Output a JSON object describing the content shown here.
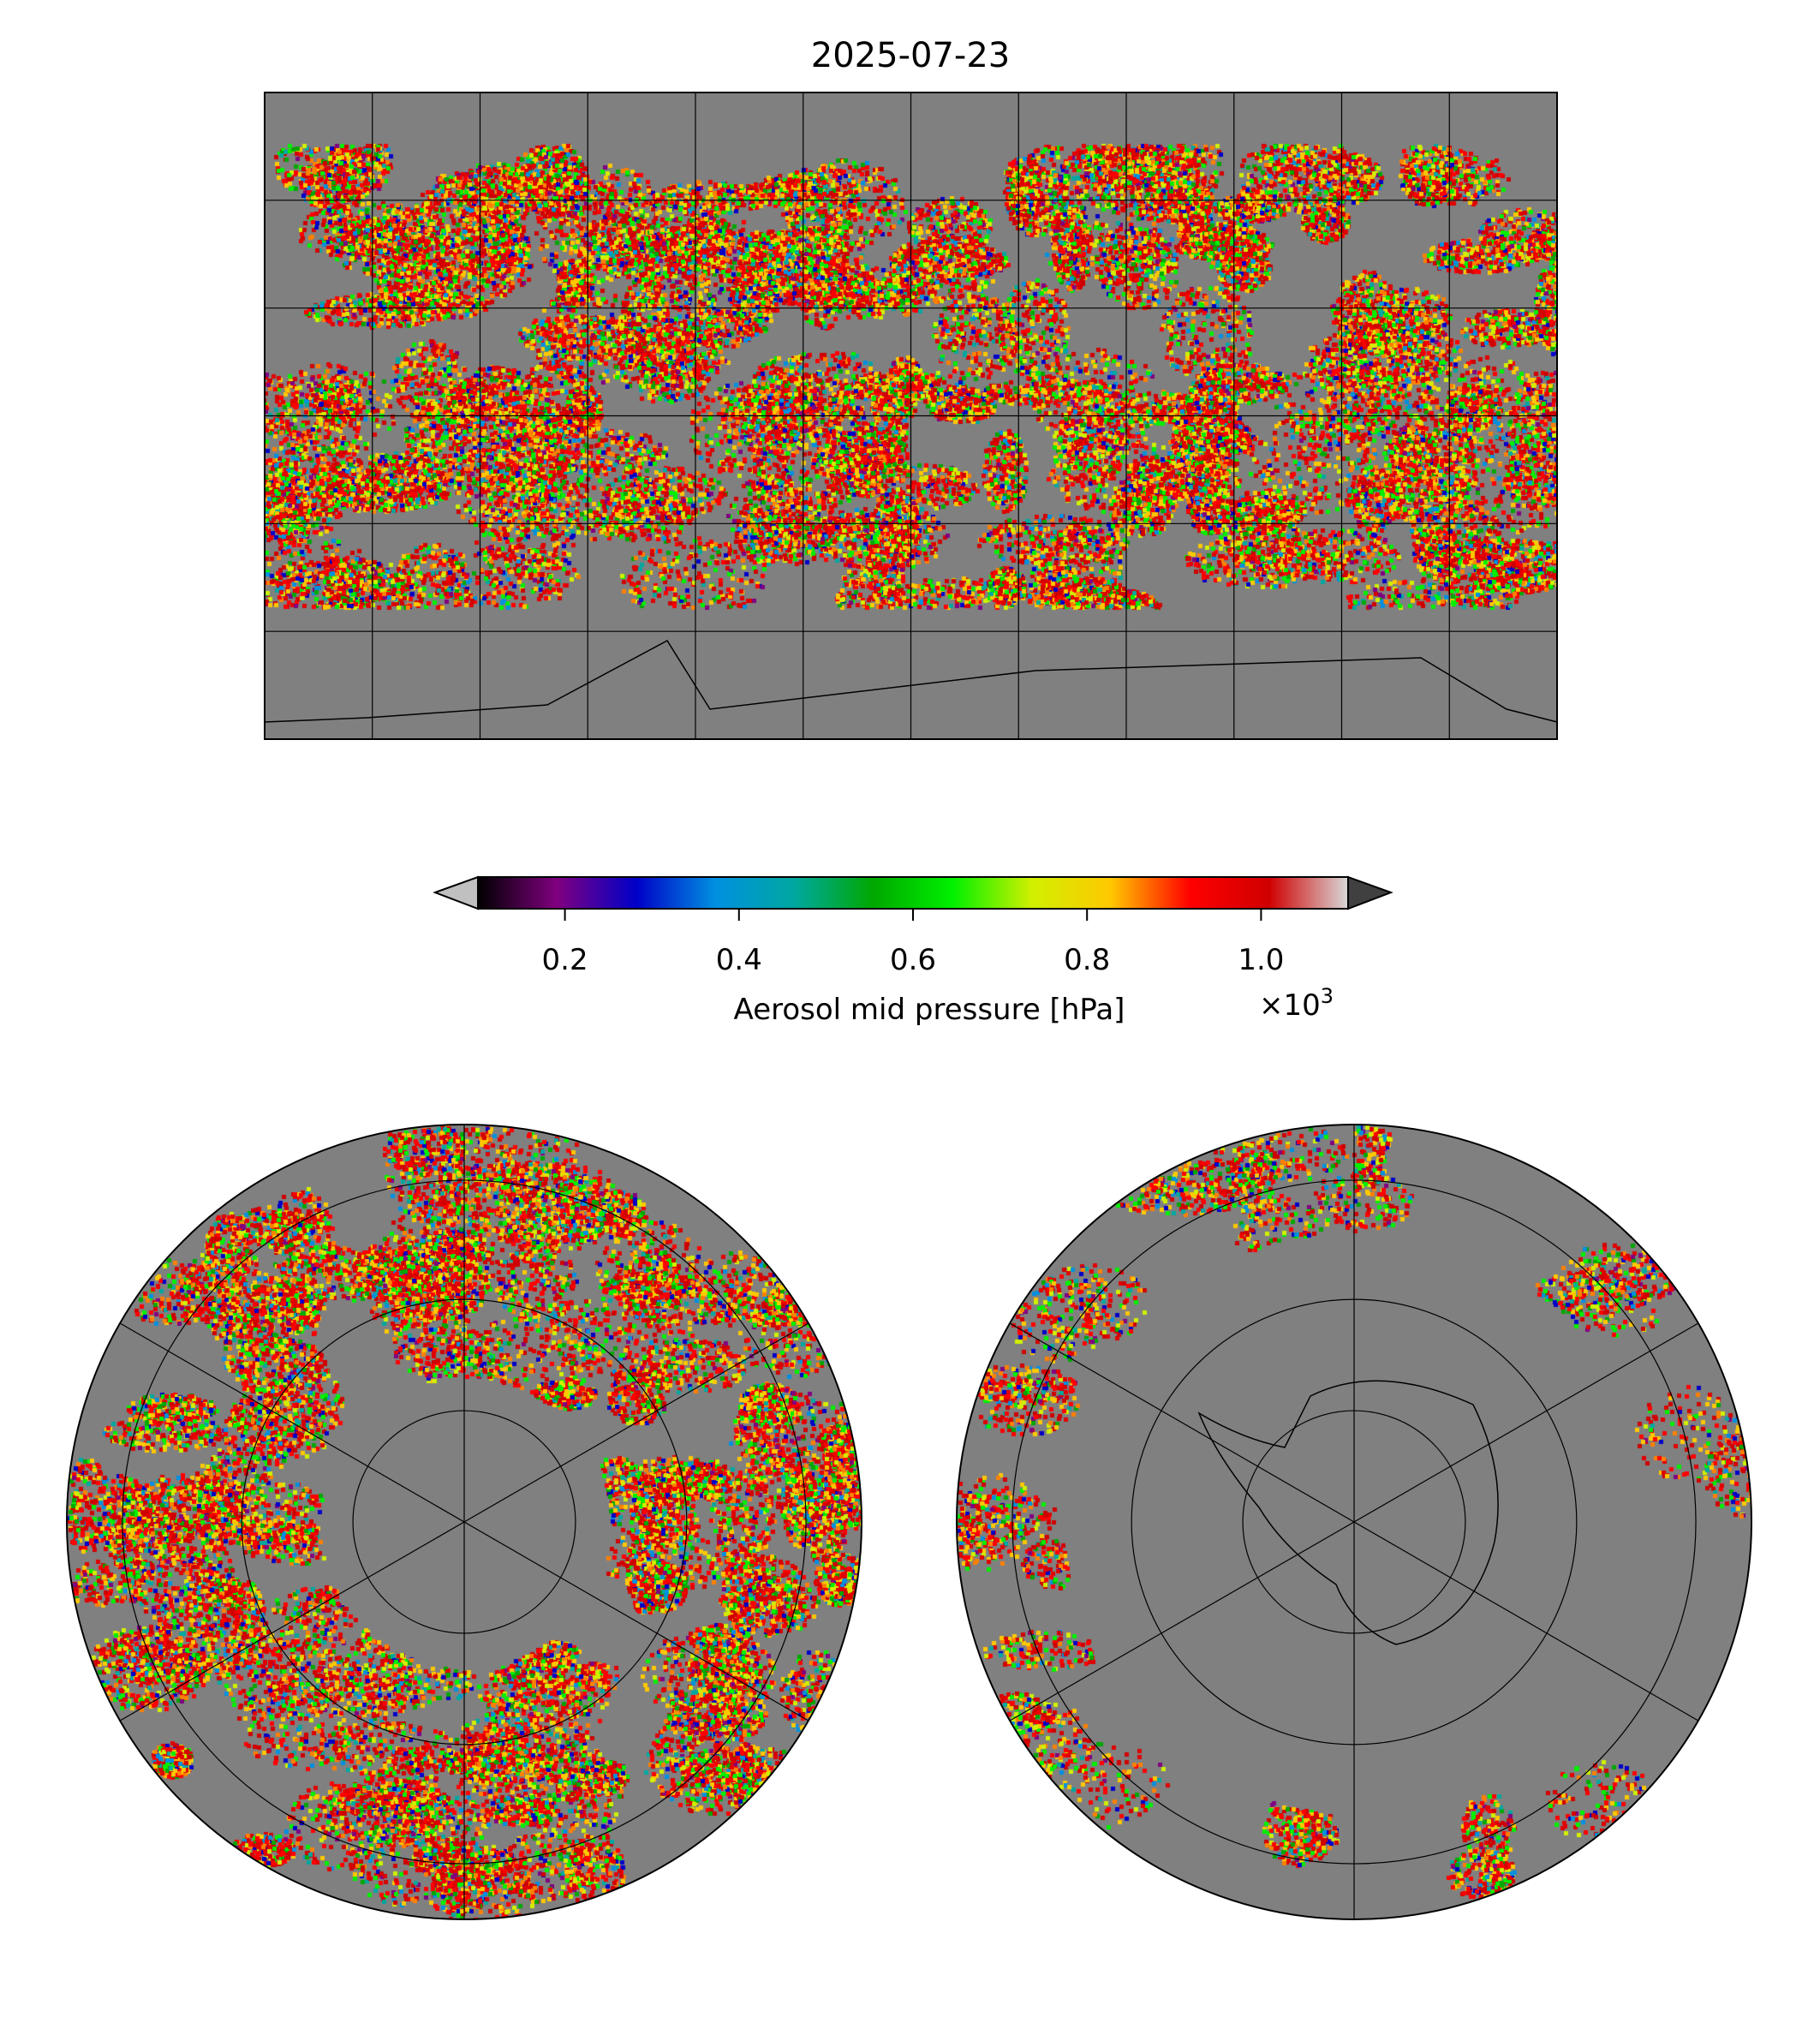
{
  "chart_data": {
    "type": "heatmap",
    "title": "2025-07-23",
    "panels": [
      "global-equirectangular-map",
      "north-polar-stereographic-map",
      "south-polar-stereographic-map"
    ],
    "map_grid": {
      "lon_step_deg": 30,
      "lat_step_deg": 30,
      "polar_ring_lats_deg": [
        30,
        60,
        75
      ]
    },
    "missing_color": "#808080",
    "colorbar": {
      "label": "Aerosol mid pressure [hPa]",
      "multiplier": "×10",
      "multiplier_exp": "3",
      "range": [
        0.1,
        1.1
      ],
      "ticks": [
        0.2,
        0.4,
        0.6,
        0.8,
        1.0
      ],
      "tick_labels": [
        "0.2",
        "0.4",
        "0.6",
        "0.8",
        "1.0"
      ],
      "extend": "both",
      "under_color": "#c0c0c0",
      "over_color": "#404040",
      "colormap_stops": [
        "#000000",
        "#800080",
        "#0000c8",
        "#0090e0",
        "#00a8a0",
        "#00a800",
        "#00f000",
        "#d0f000",
        "#ffc800",
        "#ff0000",
        "#d00000",
        "#d8d8d8"
      ]
    }
  }
}
